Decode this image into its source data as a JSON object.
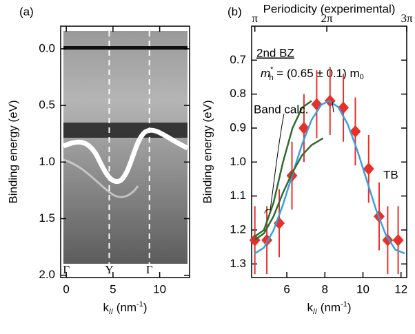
{
  "chart_data": [
    {
      "type": "image",
      "panel_label": "(a)",
      "ylabel": "Binding energy (eV)",
      "xlabel": [
        "k",
        "//",
        " (nm",
        "-1",
        ")"
      ],
      "xlim": [
        -0.6,
        13.2
      ],
      "ylim": [
        -0.2,
        2.02
      ],
      "y_inverted": true,
      "xticks": [
        0,
        5,
        10
      ],
      "yticks": [
        {
          "value": 0,
          "label": "0.0"
        },
        0.5,
        {
          "value": 1,
          "label": "1.0"
        },
        1.5,
        {
          "value": 2,
          "label": "2.0"
        }
      ],
      "symmetry_points": [
        {
          "value": 0,
          "label": "Γ"
        },
        {
          "value": 4.6,
          "label": "Y"
        },
        {
          "value": 8.9,
          "label": "Γ"
        }
      ]
    },
    {
      "type": "scatter",
      "panel_label": "(b)",
      "ylabel": "Binding energy (eV)",
      "xlabel": [
        "k",
        "//",
        " (nm",
        "-1",
        ")"
      ],
      "x2label": "Periodicity (experimental)",
      "xlim": [
        4.15,
        12.3
      ],
      "ylim": [
        0.6,
        1.34
      ],
      "y_inverted": true,
      "xticks": [
        6,
        8,
        10,
        12
      ],
      "yticks": [
        0.7,
        0.8,
        0.9,
        {
          "value": 1,
          "label": "1.0"
        },
        1.1,
        1.2,
        1.3
      ],
      "x2ticks": [
        {
          "value": 4.32,
          "label": "π"
        },
        {
          "value": 8.1,
          "label": "2π"
        },
        {
          "value": 12.3,
          "label": "3π"
        }
      ],
      "annotations": [
        "2nd BZ",
        [
          "m",
          "*",
          "h",
          " = (0.65 ± 0.1) m",
          "0"
        ]
      ],
      "series": [
        {
          "kind": "points",
          "color": "#e8302a",
          "x": [
            4.32,
            4.95,
            5.6,
            6.27,
            6.9,
            7.57,
            8.27,
            8.97,
            9.6,
            10.3,
            10.85,
            11.3,
            11.85
          ],
          "values": [
            1.23,
            1.23,
            1.18,
            1.04,
            0.9,
            0.83,
            0.82,
            0.84,
            0.91,
            1.02,
            1.16,
            1.23,
            1.23
          ],
          "errors": [
            0.1,
            0.1,
            0.1,
            0.1,
            0.1,
            0.1,
            0.1,
            0.1,
            0.1,
            0.1,
            0.1,
            0.1,
            0.1
          ]
        },
        {
          "kind": "line",
          "name": "TB",
          "color": "#3aa0dc",
          "x": [
            4.3,
            4.8,
            5.3,
            5.8,
            6.3,
            6.8,
            7.3,
            7.8,
            8.2,
            8.7,
            9.2,
            9.7,
            10.2,
            10.7,
            11.2,
            11.7,
            12.2
          ],
          "values": [
            1.27,
            1.252,
            1.201,
            1.125,
            1.036,
            0.948,
            0.876,
            0.832,
            0.82,
            0.838,
            0.889,
            0.965,
            1.054,
            1.142,
            1.214,
            1.258,
            1.269
          ]
        },
        {
          "kind": "line",
          "name": "Band calc.",
          "color": "#2e6b2e",
          "x": [
            4.3,
            4.8,
            5.3,
            5.8,
            6.3,
            6.8,
            7.3,
            7.3,
            4.3,
            4.8,
            5.3,
            5.8,
            6.3,
            6.8,
            7.3,
            7.9
          ],
          "values": [
            1.22,
            1.2,
            1.12,
            1.0,
            0.9,
            0.84,
            0.82,
            null,
            1.23,
            1.21,
            1.16,
            1.09,
            1.03,
            0.98,
            0.95,
            0.93
          ]
        }
      ]
    }
  ]
}
